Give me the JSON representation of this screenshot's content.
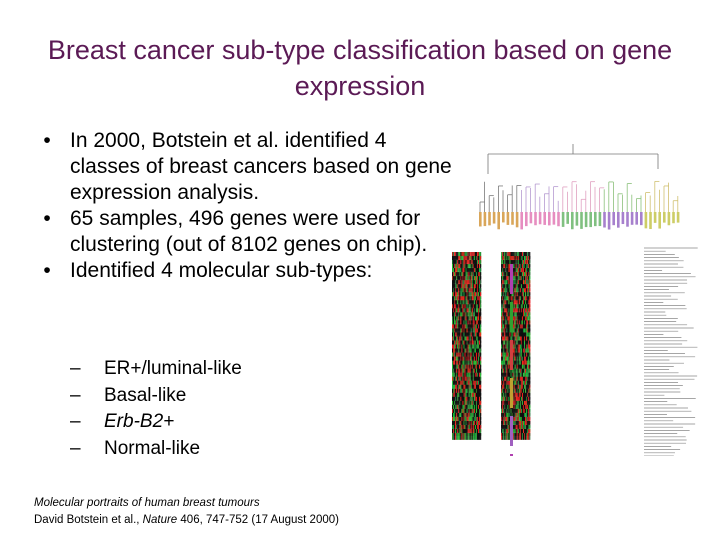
{
  "slide": {
    "title": "Breast cancer sub-type classification based on gene expression",
    "bullets": [
      "In 2000, Botstein et al. identified 4 classes of breast cancers based on gene expression analysis.",
      "65 samples, 496 genes were used for clustering (out of 8102 genes on chip).",
      "Identified 4 molecular sub-types:"
    ],
    "bullet_marker": "•",
    "sub_marker": "–",
    "subtypes": [
      "ER+/luminal-like",
      "Basal-like",
      "Erb-B2+",
      "Normal-like"
    ],
    "citation": {
      "title": "Molecular portraits of human breast tumours",
      "authors": "David Botstein et al., ",
      "journal": "Nature",
      "details": " 406, 747-752 (17 August 2000)"
    }
  },
  "colors": {
    "title": "#5b1a55",
    "heatmap_red": "#d42020",
    "heatmap_green": "#1a8a3a",
    "heatmap_black": "#101010"
  },
  "icons": {
    "figure": "heatmap-dendrogram-figure"
  }
}
